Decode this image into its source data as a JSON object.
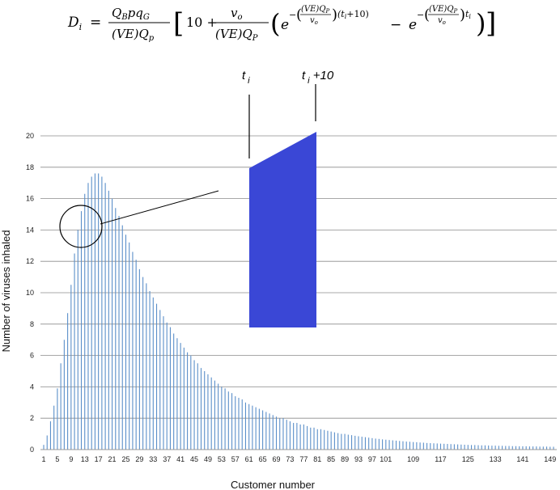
{
  "formula": {
    "lhs": "D",
    "lhs_sub": "i",
    "frac1_num": "Q",
    "frac1_num_b": "B",
    "frac1_num_rest": "pq",
    "frac1_num_g": "G",
    "frac1_den": "(VE)Q",
    "frac1_den_p": "p",
    "ten": "10 +",
    "frac2_num": "v",
    "frac2_num_o": "o",
    "frac2_den": "(VE)Q",
    "frac2_den_p": "P",
    "e": "e",
    "exp1_tail": "(t",
    "exp1_tail_i": "i",
    "exp1_tail_end": "+10)",
    "minus": "−",
    "exp2_tail": "t",
    "exp2_tail_i": "i",
    "exp_num": "(VE)Q",
    "exp_num_p": "P",
    "exp_den": "v",
    "exp_den_o": "o",
    "exp_minus": "−"
  },
  "chart_data": {
    "type": "bar",
    "xlabel": "Customer number",
    "ylabel": "Number of viruses inhaled",
    "ylim": [
      0,
      20
    ],
    "yticks": [
      0,
      2,
      4,
      6,
      8,
      10,
      12,
      14,
      16,
      18,
      20
    ],
    "xlim": [
      1,
      150
    ],
    "xticks": [
      1,
      5,
      9,
      13,
      17,
      21,
      25,
      29,
      33,
      37,
      41,
      45,
      49,
      53,
      57,
      61,
      65,
      69,
      73,
      77,
      81,
      85,
      89,
      93,
      97,
      101,
      109,
      117,
      125,
      133,
      141,
      149
    ],
    "grid": "horizontal",
    "bar_color": "#5b8fc9",
    "x": [
      1,
      2,
      3,
      4,
      5,
      6,
      7,
      8,
      9,
      10,
      11,
      12,
      13,
      14,
      15,
      16,
      17,
      18,
      19,
      20,
      21,
      22,
      23,
      24,
      25,
      26,
      27,
      28,
      29,
      30,
      31,
      32,
      33,
      34,
      35,
      36,
      37,
      38,
      39,
      40,
      41,
      42,
      43,
      44,
      45,
      46,
      47,
      48,
      49,
      50,
      51,
      52,
      53,
      54,
      55,
      56,
      57,
      58,
      59,
      60,
      61,
      62,
      63,
      64,
      65,
      66,
      67,
      68,
      69,
      70,
      71,
      72,
      73,
      74,
      75,
      76,
      77,
      78,
      79,
      80,
      81,
      82,
      83,
      84,
      85,
      86,
      87,
      88,
      89,
      90,
      91,
      92,
      93,
      94,
      95,
      96,
      97,
      98,
      99,
      100,
      101,
      102,
      103,
      104,
      105,
      106,
      107,
      108,
      109,
      110,
      111,
      112,
      113,
      114,
      115,
      116,
      117,
      118,
      119,
      120,
      121,
      122,
      123,
      124,
      125,
      126,
      127,
      128,
      129,
      130,
      131,
      132,
      133,
      134,
      135,
      136,
      137,
      138,
      139,
      140,
      141,
      142,
      143,
      144,
      145,
      146,
      147,
      148,
      149,
      150
    ],
    "values": [
      0.3,
      0.9,
      1.8,
      2.8,
      3.9,
      5.5,
      7.0,
      8.7,
      10.5,
      12.5,
      14.0,
      15.2,
      16.3,
      17.0,
      17.4,
      17.6,
      17.6,
      17.4,
      17.0,
      16.5,
      16.0,
      15.4,
      14.9,
      14.3,
      13.7,
      13.2,
      12.6,
      12.1,
      11.5,
      11.0,
      10.6,
      10.1,
      9.7,
      9.3,
      8.9,
      8.5,
      8.1,
      7.8,
      7.4,
      7.1,
      6.8,
      6.5,
      6.2,
      6.0,
      5.7,
      5.5,
      5.2,
      5.0,
      4.8,
      4.6,
      4.4,
      4.2,
      4.0,
      3.9,
      3.7,
      3.6,
      3.4,
      3.3,
      3.2,
      3.0,
      2.9,
      2.8,
      2.7,
      2.6,
      2.5,
      2.4,
      2.3,
      2.2,
      2.1,
      2.0,
      2.0,
      1.9,
      1.8,
      1.7,
      1.7,
      1.6,
      1.6,
      1.5,
      1.4,
      1.4,
      1.3,
      1.3,
      1.25,
      1.2,
      1.15,
      1.1,
      1.05,
      1.0,
      1.0,
      0.95,
      0.92,
      0.88,
      0.85,
      0.82,
      0.79,
      0.76,
      0.73,
      0.7,
      0.68,
      0.65,
      0.63,
      0.61,
      0.59,
      0.57,
      0.55,
      0.53,
      0.51,
      0.5,
      0.48,
      0.47,
      0.45,
      0.44,
      0.42,
      0.41,
      0.4,
      0.39,
      0.38,
      0.37,
      0.36,
      0.35,
      0.34,
      0.33,
      0.32,
      0.31,
      0.3,
      0.29,
      0.29,
      0.28,
      0.27,
      0.27,
      0.26,
      0.25,
      0.25,
      0.24,
      0.24,
      0.23,
      0.23,
      0.22,
      0.22,
      0.21,
      0.21,
      0.21,
      0.2,
      0.2,
      0.2,
      0.19,
      0.19,
      0.19,
      0.18,
      0.18
    ]
  },
  "inset": {
    "label_left": "t",
    "label_left_sub": "i",
    "label_right": "t",
    "label_right_sub": "i",
    "label_right_tail": " +10",
    "fill": "#3a47d6"
  }
}
